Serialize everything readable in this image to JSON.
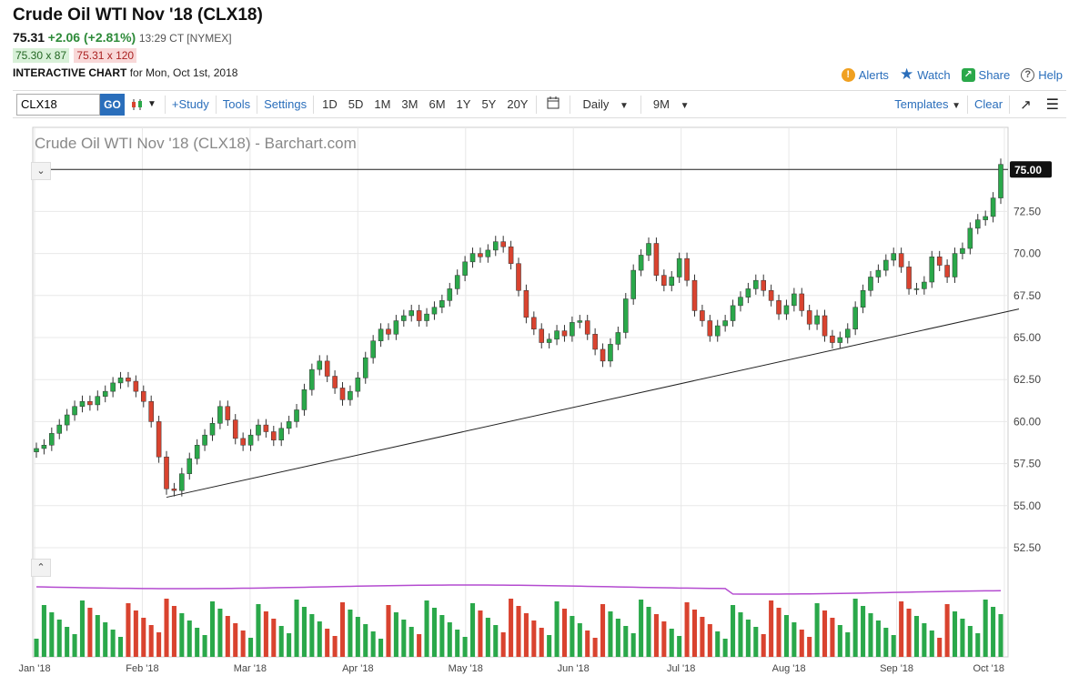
{
  "header": {
    "title": "Crude Oil WTI Nov '18 (CLX18)",
    "price": "75.31",
    "change": "+2.06 (+2.81%)",
    "time": "13:29 CT [NYMEX]",
    "bid": "75.30 x 87",
    "ask": "75.31 x 120",
    "interactive_label": "INTERACTIVE CHART",
    "interactive_date": "for Mon, Oct 1st, 2018"
  },
  "actions": {
    "alerts": "Alerts",
    "watch": "Watch",
    "share": "Share",
    "help": "Help"
  },
  "toolbar": {
    "symbol_value": "CLX18",
    "go": "GO",
    "study": "+Study",
    "tools": "Tools",
    "settings": "Settings",
    "periods": [
      "1D",
      "5D",
      "1M",
      "3M",
      "6M",
      "1Y",
      "5Y",
      "20Y"
    ],
    "interval": "Daily",
    "range": "9M",
    "templates": "Templates",
    "clear": "Clear"
  },
  "colors": {
    "up": "#2aa84a",
    "down": "#d9432f",
    "volume_avg": "#b44bd0",
    "link": "#2a6ebb"
  },
  "chart_data": {
    "type": "candlestick",
    "title": "Crude Oil WTI Nov '18 (CLX18) - Barchart.com",
    "y_ticks": [
      "75.00",
      "72.50",
      "70.00",
      "67.50",
      "65.00",
      "62.50",
      "60.00",
      "57.50",
      "55.00",
      "52.50"
    ],
    "ylim": [
      52.5,
      77.5
    ],
    "x_labels": [
      "Jan '18",
      "Feb '18",
      "Mar '18",
      "Apr '18",
      "May '18",
      "Jun '18",
      "Jul '18",
      "Aug '18",
      "Sep '18",
      "Oct '18"
    ],
    "last_price_label": "75.00",
    "horizontal_line": 75.0,
    "trendline": {
      "start": 55.5,
      "end": 66.7
    },
    "closes": [
      58.4,
      58.6,
      59.3,
      59.8,
      60.4,
      60.9,
      61.2,
      61.0,
      61.5,
      61.8,
      62.3,
      62.6,
      62.4,
      61.8,
      61.2,
      60.0,
      57.9,
      56.0,
      55.9,
      56.9,
      57.8,
      58.6,
      59.2,
      59.9,
      60.9,
      60.1,
      59.0,
      58.6,
      59.2,
      59.8,
      59.4,
      58.9,
      59.6,
      60.0,
      60.7,
      61.9,
      63.1,
      63.6,
      62.7,
      62.0,
      61.3,
      61.8,
      62.6,
      63.8,
      64.8,
      65.5,
      65.2,
      66.0,
      66.3,
      66.6,
      66.0,
      66.4,
      66.8,
      67.2,
      67.9,
      68.7,
      69.5,
      70.0,
      69.8,
      70.2,
      70.7,
      70.4,
      69.4,
      67.8,
      66.2,
      65.5,
      64.7,
      64.9,
      65.4,
      65.1,
      65.9,
      66.0,
      65.2,
      64.3,
      63.6,
      64.6,
      65.3,
      67.3,
      69.0,
      69.9,
      70.6,
      68.7,
      68.1,
      68.6,
      69.7,
      68.4,
      66.6,
      66.0,
      65.1,
      65.7,
      66.0,
      66.9,
      67.4,
      67.9,
      68.4,
      67.8,
      67.2,
      66.4,
      66.9,
      67.6,
      66.6,
      65.8,
      66.3,
      65.1,
      64.7,
      65.0,
      65.5,
      66.8,
      67.8,
      68.6,
      69.0,
      69.6,
      70.0,
      69.2,
      67.9,
      67.9,
      68.3,
      69.8,
      69.3,
      68.6,
      70.0,
      70.3,
      71.5,
      72.0,
      72.2,
      73.3,
      75.3
    ]
  }
}
